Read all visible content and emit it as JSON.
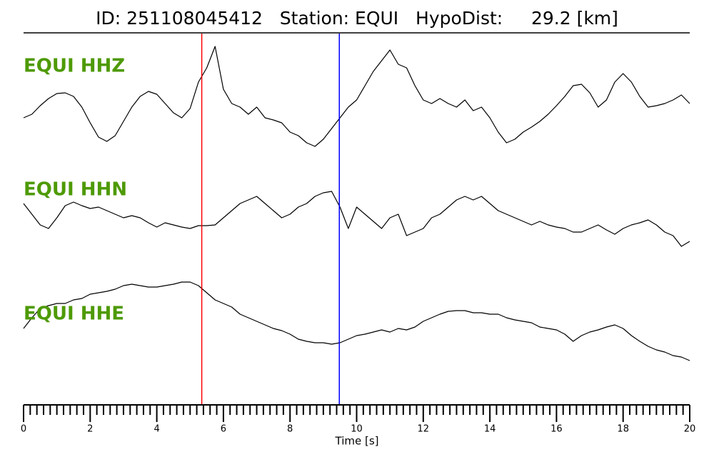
{
  "chart_data": {
    "type": "seismogram",
    "title": "ID: 251108045412   Station: EQUI   HypoDist:     29.2 [km]",
    "xlabel": "Time [s]",
    "xlim": [
      0,
      20
    ],
    "xticks": [
      0,
      2,
      4,
      6,
      8,
      10,
      12,
      14,
      16,
      18,
      20
    ],
    "xminor_ticks": [
      0.2,
      0.4,
      0.6,
      0.8,
      1,
      1.2,
      1.4,
      1.6,
      1.8,
      2.2,
      2.4,
      2.6,
      2.8,
      3,
      3.2,
      3.4,
      3.6,
      3.8,
      4.2,
      4.4,
      4.6,
      4.8,
      5,
      5.2,
      5.4,
      5.6,
      5.8,
      6.2,
      6.4,
      6.6,
      6.8,
      7,
      7.2,
      7.4,
      7.6,
      7.8,
      8.2,
      8.4,
      8.6,
      8.8,
      9,
      9.2,
      9.4,
      9.6,
      9.8,
      10.2,
      10.4,
      10.6,
      10.8,
      11,
      11.2,
      11.4,
      11.6,
      11.8,
      12.2,
      12.4,
      12.6,
      12.8,
      13,
      13.2,
      13.4,
      13.6,
      13.8,
      14.2,
      14.4,
      14.6,
      14.8,
      15,
      15.2,
      15.4,
      15.6,
      15.8,
      16.2,
      16.4,
      16.6,
      16.8,
      17,
      17.2,
      17.4,
      17.6,
      17.8,
      18.2,
      18.4,
      18.6,
      18.8,
      19,
      19.2,
      19.4,
      19.6,
      19.8
    ],
    "x": [
      0,
      0.25,
      0.5,
      0.75,
      1,
      1.25,
      1.5,
      1.75,
      2,
      2.25,
      2.5,
      2.75,
      3,
      3.25,
      3.5,
      3.75,
      4,
      4.25,
      4.5,
      4.75,
      5,
      5.25,
      5.5,
      5.75,
      6,
      6.25,
      6.5,
      6.75,
      7,
      7.25,
      7.5,
      7.75,
      8,
      8.25,
      8.5,
      8.75,
      9,
      9.25,
      9.5,
      9.75,
      10,
      10.25,
      10.5,
      10.75,
      11,
      11.25,
      11.5,
      11.75,
      12,
      12.25,
      12.5,
      12.75,
      13,
      13.25,
      13.5,
      13.75,
      14,
      14.25,
      14.5,
      14.75,
      15,
      15.25,
      15.5,
      15.75,
      16,
      16.25,
      16.5,
      16.75,
      17,
      17.25,
      17.5,
      17.75,
      18,
      18.25,
      18.5,
      18.75,
      19,
      19.25,
      19.5,
      19.75,
      20
    ],
    "series": [
      {
        "name": "EQUI HHZ",
        "color": "#000000",
        "label_color": "#4e9a06",
        "values": [
          -25,
          -20,
          -8,
          2,
          9,
          10,
          5,
          -10,
          -32,
          -52,
          -58,
          -50,
          -30,
          -10,
          5,
          12,
          8,
          -5,
          -18,
          -25,
          -12,
          25,
          45,
          75,
          15,
          -5,
          -10,
          -20,
          -10,
          -25,
          -28,
          -32,
          -45,
          -50,
          -60,
          -65,
          -55,
          -40,
          -25,
          -10,
          0,
          20,
          40,
          55,
          70,
          50,
          45,
          20,
          0,
          -5,
          2,
          -5,
          -10,
          0,
          -15,
          -10,
          -25,
          -45,
          -60,
          -55,
          -45,
          -38,
          -30,
          -20,
          -8,
          5,
          20,
          22,
          10,
          -10,
          0,
          25,
          37,
          25,
          5,
          -10,
          -8,
          -5,
          0,
          7,
          -5
        ]
      },
      {
        "name": "EQUI HHN",
        "color": "#000000",
        "label_color": "#4e9a06",
        "values": [
          15,
          0,
          -15,
          -20,
          -5,
          12,
          17,
          12,
          8,
          10,
          5,
          0,
          -5,
          -2,
          -5,
          -12,
          -18,
          -12,
          -15,
          -18,
          -20,
          -16,
          -16,
          -15,
          -5,
          5,
          15,
          20,
          25,
          15,
          5,
          -5,
          0,
          10,
          15,
          25,
          30,
          32,
          10,
          -20,
          10,
          0,
          -10,
          -20,
          -5,
          0,
          -30,
          -25,
          -20,
          -5,
          0,
          10,
          20,
          25,
          20,
          25,
          15,
          5,
          0,
          -5,
          -10,
          -15,
          -10,
          -15,
          -18,
          -20,
          -25,
          -25,
          -20,
          -15,
          -22,
          -28,
          -20,
          -15,
          -12,
          -8,
          -15,
          -25,
          -30,
          -45,
          -38
        ]
      },
      {
        "name": "EQUI HHE",
        "color": "#000000",
        "label_color": "#4e9a06",
        "values": [
          -10,
          5,
          18,
          22,
          25,
          25,
          30,
          32,
          38,
          40,
          42,
          45,
          50,
          52,
          50,
          48,
          48,
          50,
          52,
          55,
          55,
          50,
          40,
          30,
          25,
          20,
          10,
          5,
          0,
          -5,
          -10,
          -13,
          -18,
          -25,
          -28,
          -30,
          -30,
          -32,
          -30,
          -25,
          -20,
          -18,
          -15,
          -12,
          -15,
          -10,
          -12,
          -8,
          0,
          5,
          10,
          14,
          15,
          15,
          12,
          12,
          10,
          10,
          5,
          2,
          0,
          -2,
          -8,
          -10,
          -12,
          -18,
          -28,
          -20,
          -15,
          -12,
          -8,
          -5,
          -10,
          -20,
          -28,
          -35,
          -40,
          -43,
          -48,
          -50,
          -55
        ]
      }
    ],
    "markers": [
      {
        "x": 5.35,
        "color": "#ff0000"
      },
      {
        "x": 9.48,
        "color": "#0000ff"
      }
    ]
  }
}
